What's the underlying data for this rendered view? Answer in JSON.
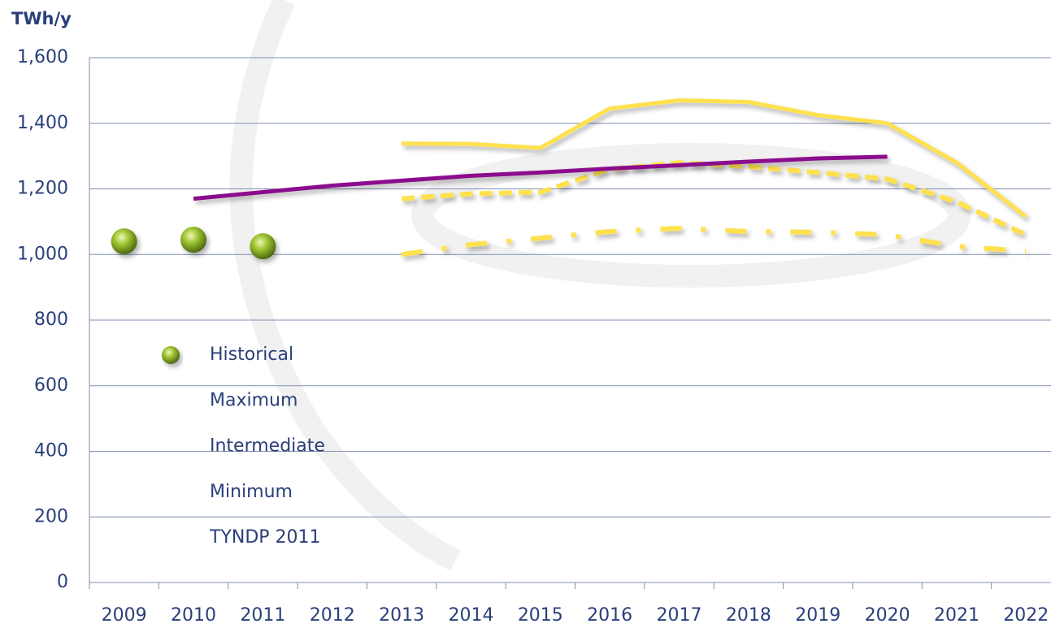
{
  "chart_data": {
    "type": "line",
    "y_label": "TWh/y",
    "categories": [
      "2009",
      "2010",
      "2011",
      "2012",
      "2013",
      "2014",
      "2015",
      "2016",
      "2017",
      "2018",
      "2019",
      "2020",
      "2021",
      "2022"
    ],
    "ylim": [
      0,
      1600
    ],
    "yticks": [
      0,
      200,
      400,
      600,
      800,
      {
        "value": 1000,
        "label": "1,000"
      },
      {
        "value": 1200,
        "label": "1,200"
      },
      {
        "value": 1400,
        "label": "1,400"
      },
      {
        "value": 1600,
        "label": "1,600"
      }
    ],
    "grid": true,
    "series": [
      {
        "name": "Historical",
        "color": "#8db32a",
        "style": "markers",
        "values": [
          1040,
          1045,
          1025,
          null,
          null,
          null,
          null,
          null,
          null,
          null,
          null,
          null,
          null,
          null
        ]
      },
      {
        "name": "Maximum",
        "color": "#ffe14f",
        "style": "solid",
        "values": [
          null,
          null,
          null,
          null,
          1338,
          1337,
          1325,
          1445,
          1470,
          1465,
          1425,
          1400,
          1280,
          1115
        ]
      },
      {
        "name": "Intermediate",
        "color": "#ffe14f",
        "style": "dashed",
        "values": [
          null,
          null,
          null,
          null,
          1170,
          1185,
          1190,
          1260,
          1280,
          1268,
          1250,
          1230,
          1160,
          1060
        ]
      },
      {
        "name": "Minimum",
        "color": "#ffe14f",
        "style": "dash-dot",
        "values": [
          null,
          null,
          null,
          null,
          1000,
          1030,
          1050,
          1070,
          1080,
          1070,
          1068,
          1060,
          1025,
          1010
        ]
      },
      {
        "name": "TYNDP 2011",
        "color": "#8b0a8c",
        "style": "solid",
        "values": [
          null,
          1170,
          1190,
          1210,
          1225,
          1240,
          1250,
          1262,
          1272,
          1283,
          1293,
          1298,
          null,
          null
        ]
      }
    ]
  }
}
